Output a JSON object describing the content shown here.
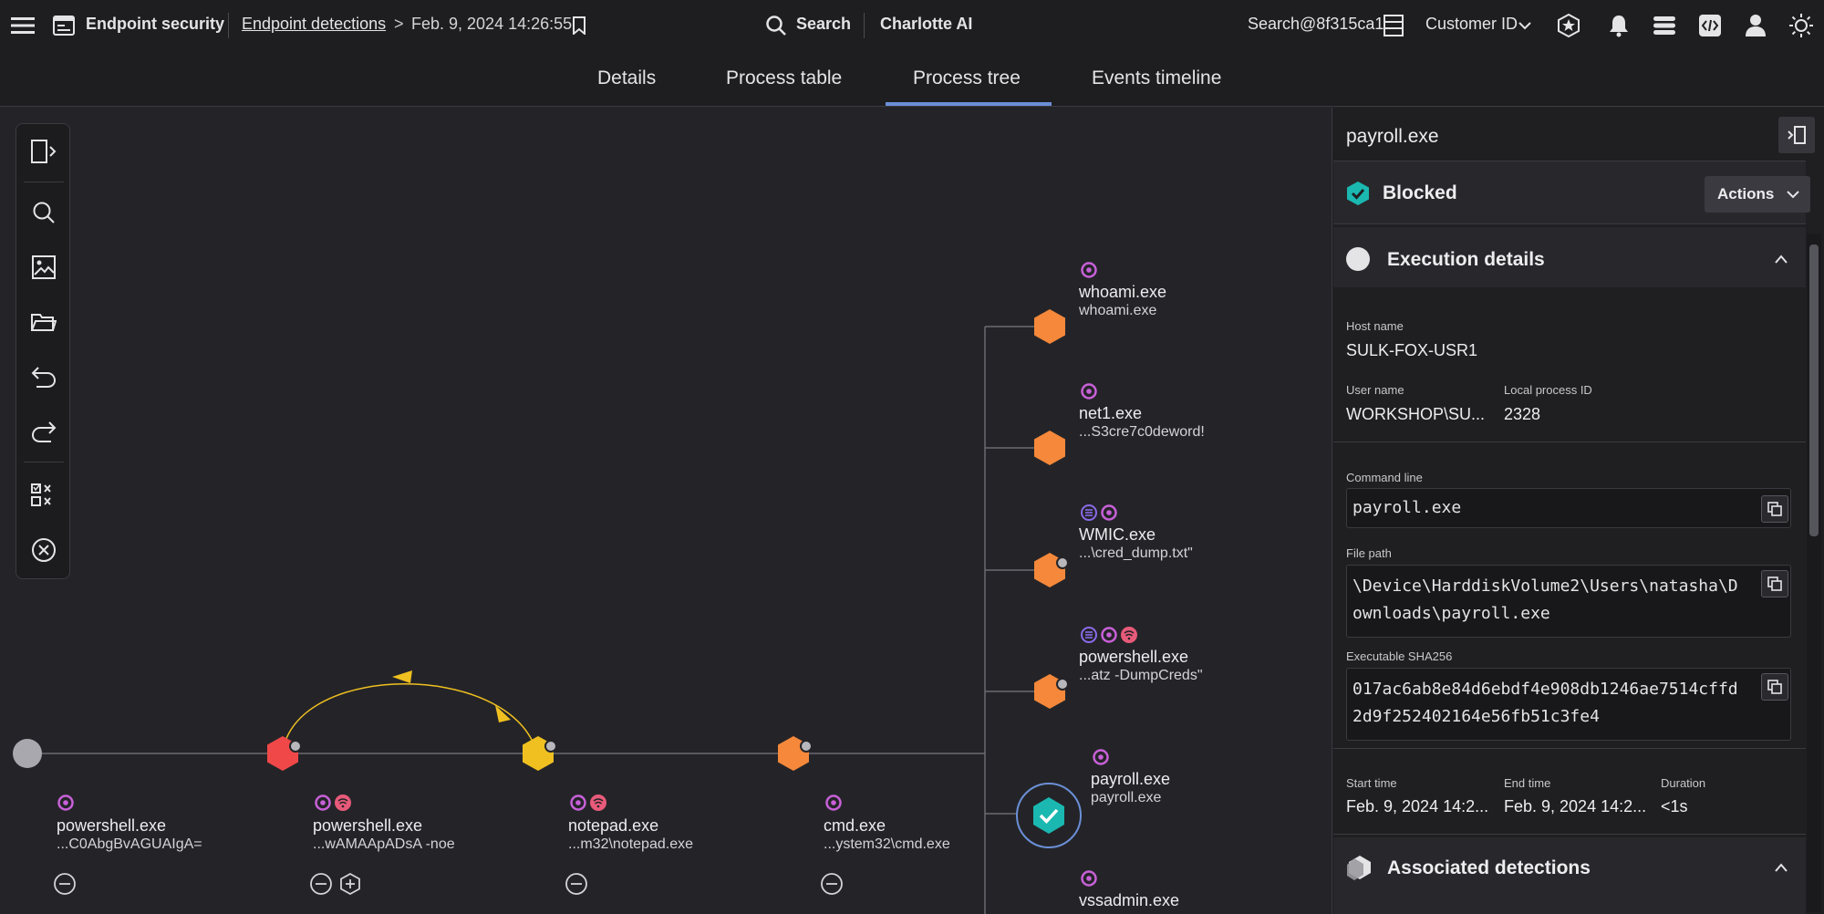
{
  "topbar": {
    "app_title": "Endpoint security",
    "breadcrumb_link": "Endpoint detections",
    "breadcrumb_sep": ">",
    "breadcrumb_date": "Feb. 9, 2024 14:26:55",
    "search_label": "Search",
    "ai_label": "Charlotte AI",
    "account_label": "Search@8f315ca1",
    "customer_label": "Customer ID"
  },
  "tabs": [
    {
      "label": "Details"
    },
    {
      "label": "Process table"
    },
    {
      "label": "Process tree",
      "active": true
    },
    {
      "label": "Events timeline"
    }
  ],
  "tree": {
    "root": {
      "name": "powershell.exe",
      "sub": "...C0AbgBvAGUAIgA="
    },
    "n1": {
      "name": "powershell.exe",
      "sub": "...wAMAApADsA -noe"
    },
    "n2": {
      "name": "notepad.exe",
      "sub": "...m32\\notepad.exe"
    },
    "n3": {
      "name": "cmd.exe",
      "sub": "...ystem32\\cmd.exe"
    },
    "children": [
      {
        "name": "whoami.exe",
        "sub": "whoami.exe"
      },
      {
        "name": "net1.exe",
        "sub": "...S3cre7c0deword!"
      },
      {
        "name": "WMIC.exe",
        "sub": "...\\cred_dump.txt\""
      },
      {
        "name": "powershell.exe",
        "sub": "...atz -DumpCreds\""
      },
      {
        "name": "payroll.exe",
        "sub": "payroll.exe"
      },
      {
        "name": "vssadmin.exe",
        "sub": ""
      }
    ],
    "colors": {
      "orange": "#f5883a",
      "red": "#f04848",
      "yellow": "#f0c020",
      "teal": "#1ab8b0",
      "gray": "#a8a8ae",
      "pink": "#c860d8",
      "salmon": "#e85a7a",
      "purple": "#8a6ae8"
    }
  },
  "panel": {
    "title": "payroll.exe",
    "status": "Blocked",
    "actions_label": "Actions",
    "exec_title": "Execution details",
    "host_label": "Host name",
    "host_value": "SULK-FOX-USR1",
    "user_label": "User name",
    "user_value": "WORKSHOP\\SU...",
    "pid_label": "Local process ID",
    "pid_value": "2328",
    "cmd_label": "Command line",
    "cmd_value": "payroll.exe",
    "path_label": "File path",
    "path_value": "\\Device\\HarddiskVolume2\\Users\\natasha\\Downloads\\payroll.exe",
    "sha_label": "Executable SHA256",
    "sha_value": "017ac6ab8e84d6ebdf4e908db1246ae7514cffd2d9f252402164e56fb51c3fe4",
    "start_label": "Start time",
    "start_value": "Feb. 9, 2024 14:2...",
    "end_label": "End time",
    "end_value": "Feb. 9, 2024 14:2...",
    "duration_label": "Duration",
    "duration_value": "<1s",
    "assoc_title": "Associated detections"
  }
}
